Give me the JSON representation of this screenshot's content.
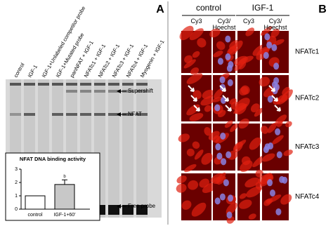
{
  "panel_a": {
    "label": "A",
    "lanes": [
      "control",
      "IGF-1",
      "IGF-1+Unlabeled competitor probe",
      "IGF-1+Mutated probe",
      "panNFAT + IGF-1",
      "NFATc1 + IGF-1",
      "NFATc2 + IGF-1",
      "NFATc3 + IGF-1",
      "NFATc4 + IGF-1",
      "Myogenin + IGF-1"
    ],
    "bands": [
      "Supershift",
      "NFAT",
      "Free probe"
    ]
  },
  "chart_data": {
    "type": "bar",
    "title": "NFAT DNA binding activity",
    "categories": [
      "control",
      "IGF-1+60'"
    ],
    "values": [
      1,
      1.85
    ],
    "errors": [
      null,
      0.35
    ],
    "colors": [
      "#ffffff",
      "#c8c8c8"
    ],
    "annotation": "b",
    "ylim": [
      0,
      3
    ],
    "yticks": [
      0,
      1,
      2,
      3
    ]
  },
  "panel_b": {
    "label": "B",
    "groups": [
      "control",
      "IGF-1"
    ],
    "columns": [
      "Cy3",
      "Cy3/ Hoechst",
      "Cy3",
      "Cy3/ Hoechst"
    ],
    "rows": [
      "NFATc1",
      "NFATc2",
      "NFATc3",
      "NFATc4"
    ]
  }
}
